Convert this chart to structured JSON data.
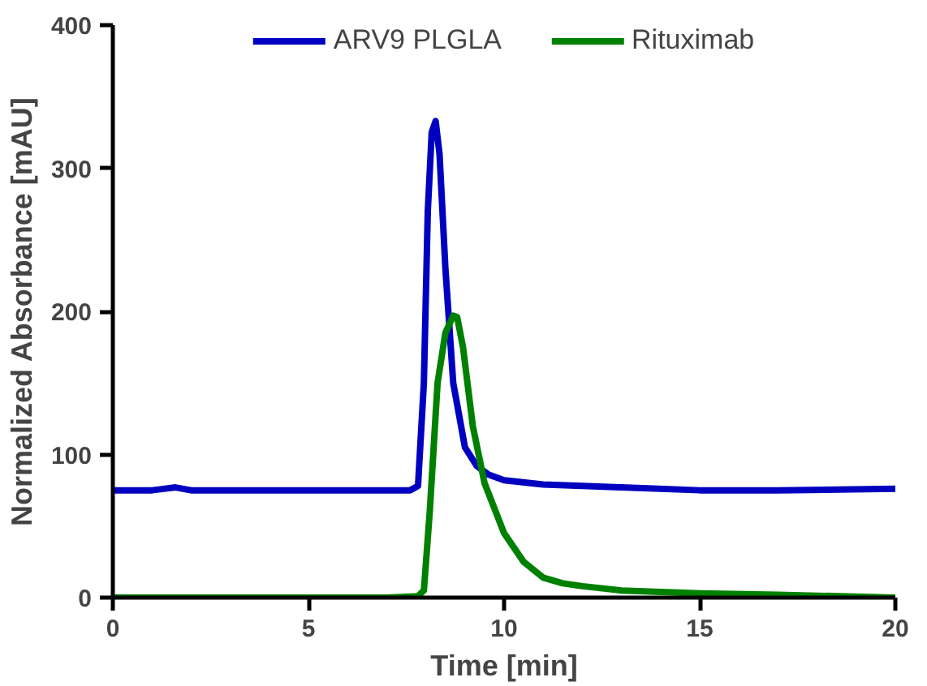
{
  "chart_data": {
    "type": "line",
    "xlabel": "Time [min]",
    "ylabel": "Normalized Absorbance [mAU]",
    "xlim": [
      0,
      20
    ],
    "ylim": [
      0,
      400
    ],
    "xticks": [
      0,
      5,
      10,
      15,
      20
    ],
    "yticks": [
      0,
      100,
      200,
      300,
      400
    ],
    "grid": false,
    "legend": "top",
    "marker": "none",
    "line_style": "solid",
    "series": [
      {
        "name": "ARV9 PLGLA",
        "color": "#0000c0",
        "x": [
          0,
          1,
          1.3,
          1.6,
          2,
          3,
          5,
          7,
          7.6,
          7.8,
          7.95,
          8.05,
          8.15,
          8.25,
          8.35,
          8.5,
          8.7,
          9,
          9.3,
          9.6,
          10,
          11,
          12,
          13,
          15,
          17,
          20
        ],
        "values": [
          75,
          75,
          76,
          77,
          75,
          75,
          75,
          75,
          75,
          78,
          150,
          270,
          325,
          333,
          310,
          230,
          150,
          105,
          92,
          86,
          82,
          79,
          78,
          77,
          75,
          75,
          76
        ]
      },
      {
        "name": "Rituximab",
        "color": "#008000",
        "x": [
          0,
          5,
          7,
          7.8,
          7.95,
          8.1,
          8.3,
          8.5,
          8.7,
          8.8,
          8.95,
          9.2,
          9.5,
          10,
          10.5,
          11,
          11.5,
          12,
          13,
          15,
          17,
          20
        ],
        "values": [
          0,
          0,
          0,
          1,
          5,
          60,
          150,
          185,
          197,
          196,
          175,
          120,
          80,
          45,
          25,
          14,
          10,
          8,
          5,
          3,
          2,
          0
        ]
      }
    ]
  }
}
